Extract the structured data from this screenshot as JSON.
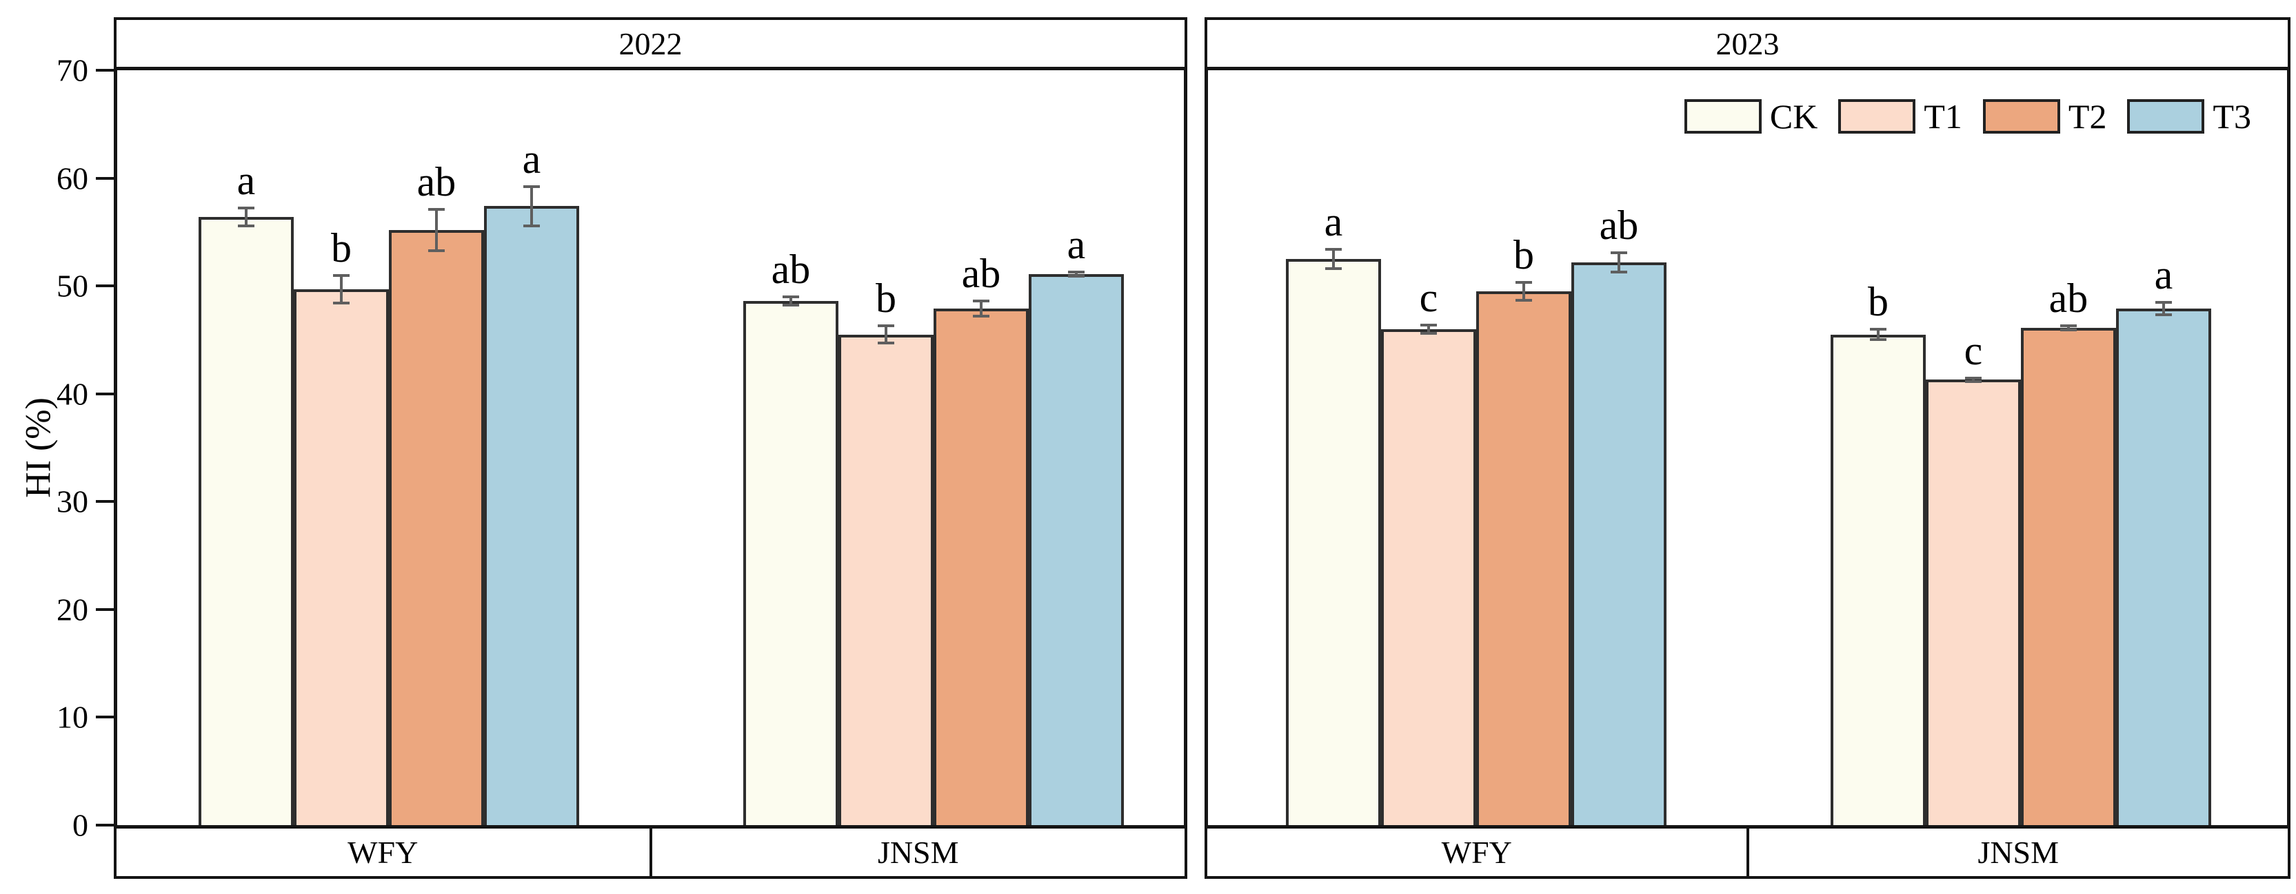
{
  "chart_data": {
    "type": "bar",
    "ylabel": "HI (%)",
    "ylim": [
      0,
      70
    ],
    "yticks": [
      0,
      10,
      20,
      30,
      40,
      50,
      60,
      70
    ],
    "grid": false,
    "legend": {
      "entries": [
        "CK",
        "T1",
        "T2",
        "T3"
      ],
      "position": "top-right-of-2023-panel"
    },
    "colors": {
      "CK": "#FCFCEF",
      "T1": "#FCDCCB",
      "T2": "#ECA77F",
      "T3": "#ABD0DF",
      "bar_border": "#2e2e2e",
      "frame": "#141414",
      "error_bar": "#5f5f5f"
    },
    "panels": [
      {
        "title": "2022",
        "groups": [
          {
            "label": "WFY",
            "bars": [
              {
                "treatment": "CK",
                "value": 56.4,
                "error": 0.8,
                "letter": "a"
              },
              {
                "treatment": "T1",
                "value": 49.7,
                "error": 1.3,
                "letter": "b"
              },
              {
                "treatment": "T2",
                "value": 55.2,
                "error": 1.9,
                "letter": "ab"
              },
              {
                "treatment": "T3",
                "value": 57.4,
                "error": 1.8,
                "letter": "a"
              }
            ]
          },
          {
            "label": "JNSM",
            "bars": [
              {
                "treatment": "CK",
                "value": 48.6,
                "error": 0.4,
                "letter": "ab"
              },
              {
                "treatment": "T1",
                "value": 45.5,
                "error": 0.8,
                "letter": "b"
              },
              {
                "treatment": "T2",
                "value": 47.9,
                "error": 0.7,
                "letter": "ab"
              },
              {
                "treatment": "T3",
                "value": 51.1,
                "error": 0.2,
                "letter": "a"
              }
            ]
          }
        ]
      },
      {
        "title": "2023",
        "groups": [
          {
            "label": "WFY",
            "bars": [
              {
                "treatment": "CK",
                "value": 52.5,
                "error": 0.9,
                "letter": "a"
              },
              {
                "treatment": "T1",
                "value": 46.0,
                "error": 0.4,
                "letter": "c"
              },
              {
                "treatment": "T2",
                "value": 49.5,
                "error": 0.8,
                "letter": "b"
              },
              {
                "treatment": "T3",
                "value": 52.2,
                "error": 0.9,
                "letter": "ab"
              }
            ]
          },
          {
            "label": "JNSM",
            "bars": [
              {
                "treatment": "CK",
                "value": 45.5,
                "error": 0.5,
                "letter": "b"
              },
              {
                "treatment": "T1",
                "value": 41.3,
                "error": 0.15,
                "letter": "c"
              },
              {
                "treatment": "T2",
                "value": 46.1,
                "error": 0.2,
                "letter": "ab"
              },
              {
                "treatment": "T3",
                "value": 47.9,
                "error": 0.6,
                "letter": "a"
              }
            ]
          }
        ]
      }
    ]
  }
}
